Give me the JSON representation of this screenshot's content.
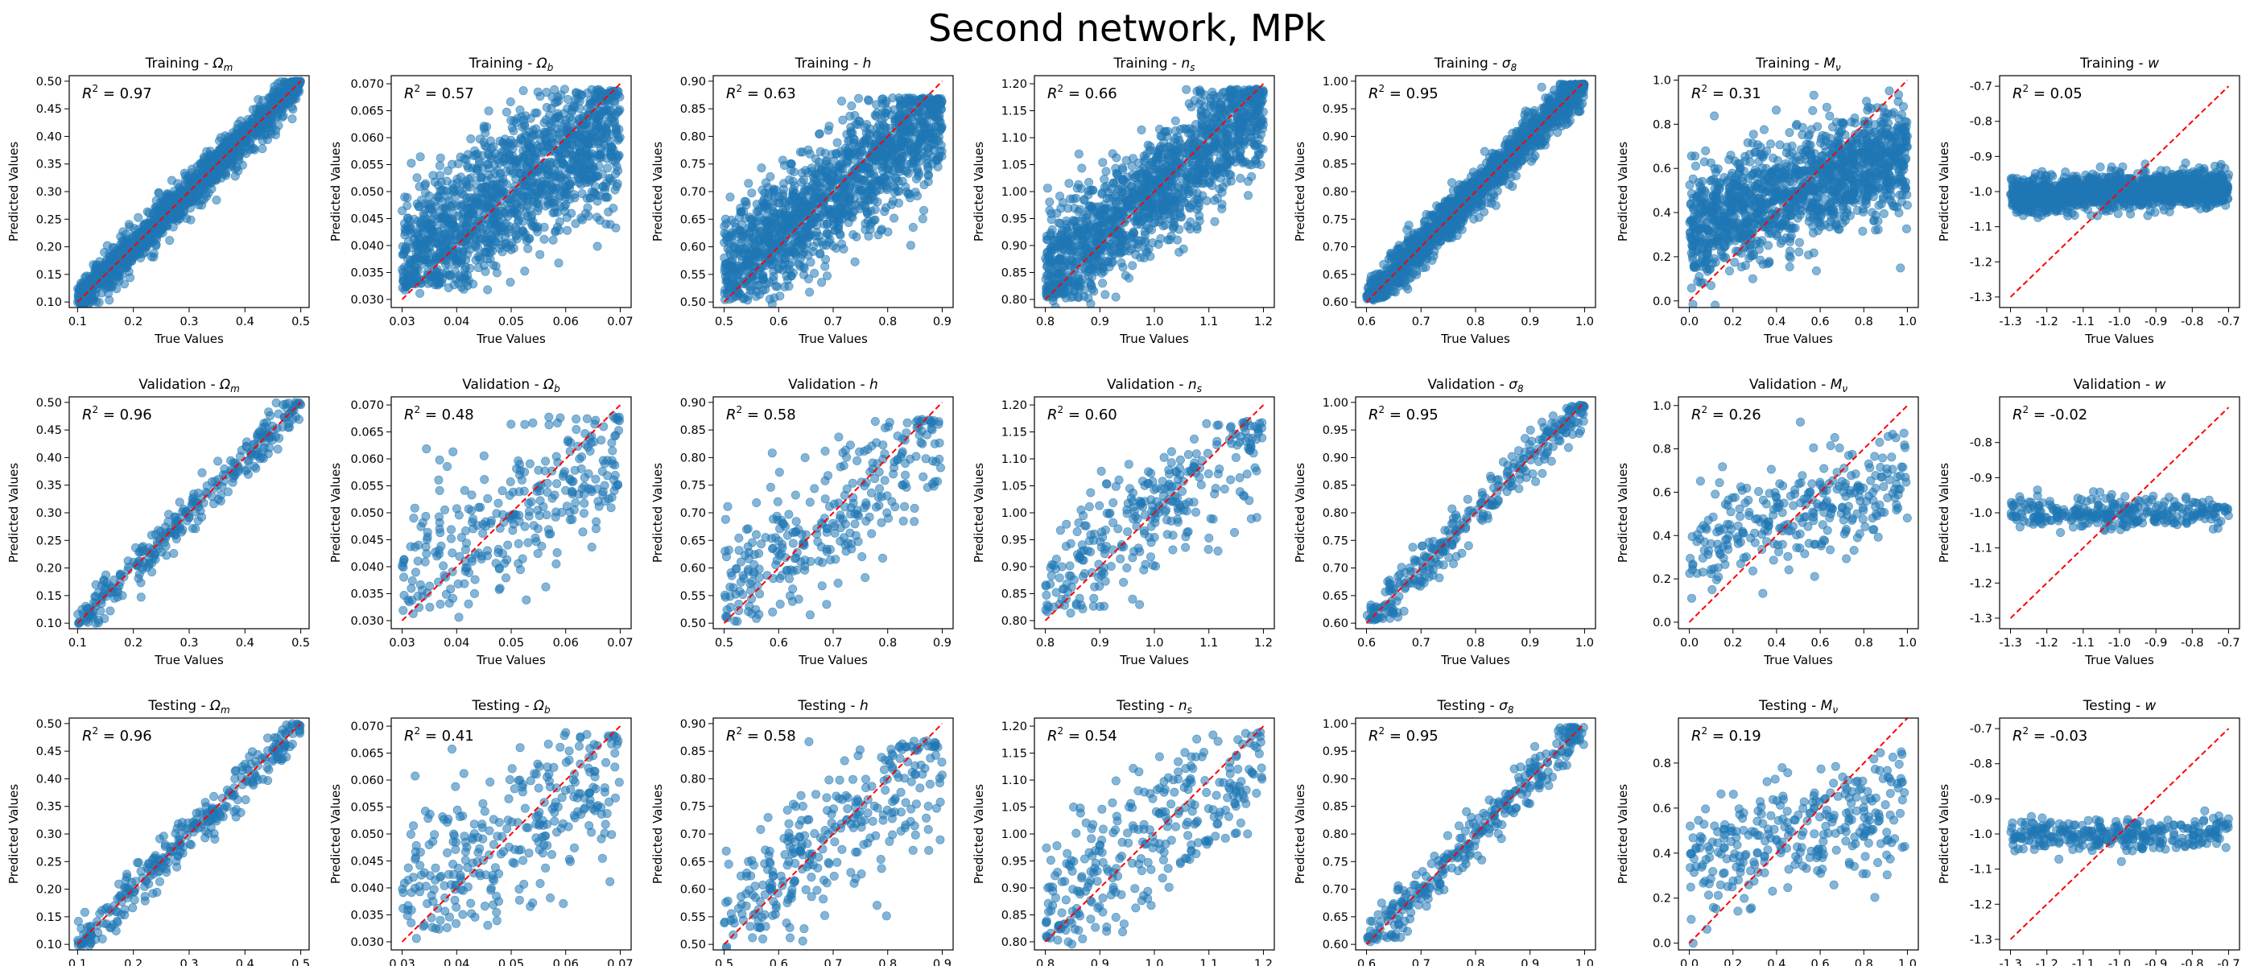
{
  "figure": {
    "title": "Second network, MPk",
    "xlabel": "True Values",
    "ylabel": "Predicted Values",
    "rows": [
      "Training",
      "Validation",
      "Testing"
    ],
    "params": [
      {
        "key": "om",
        "label": "Ω",
        "sub": "m"
      },
      {
        "key": "ob",
        "label": "Ω",
        "sub": "b"
      },
      {
        "key": "h",
        "label": "h",
        "sub": ""
      },
      {
        "key": "ns",
        "label": "n",
        "sub": "s"
      },
      {
        "key": "s8",
        "label": "σ",
        "sub": "8"
      },
      {
        "key": "mv",
        "label": "M",
        "sub": "ν"
      },
      {
        "key": "w",
        "label": "w",
        "sub": ""
      }
    ],
    "colors": {
      "points": "#1f77b4",
      "identity_line": "#ff0000"
    }
  },
  "chart_data": [
    {
      "type": "scatter",
      "row": "Training",
      "param": "Ω_m",
      "title": "Training - Ωm",
      "r2": "0.97",
      "xlim": [
        0.085,
        0.515
      ],
      "ylim": [
        0.09,
        0.51
      ],
      "xticks": [
        "0.1",
        "0.2",
        "0.3",
        "0.4",
        "0.5"
      ],
      "yticks": [
        "0.10",
        "0.15",
        "0.20",
        "0.25",
        "0.30",
        "0.35",
        "0.40",
        "0.45",
        "0.50"
      ],
      "n_points": 1400,
      "true_range": [
        0.1,
        0.5
      ],
      "noise_sd": 0.018,
      "clip": [
        0.1,
        0.5
      ],
      "diagonal": [
        0.1,
        0.5
      ]
    },
    {
      "type": "scatter",
      "row": "Training",
      "param": "Ω_b",
      "title": "Training - Ωb",
      "r2": "0.57",
      "xlim": [
        0.028,
        0.072
      ],
      "ylim": [
        0.0285,
        0.0715
      ],
      "xticks": [
        "0.03",
        "0.04",
        "0.05",
        "0.06",
        "0.07"
      ],
      "yticks": [
        "0.030",
        "0.035",
        "0.040",
        "0.045",
        "0.050",
        "0.055",
        "0.060",
        "0.065",
        "0.070"
      ],
      "n_points": 1400,
      "true_range": [
        0.03,
        0.07
      ],
      "noise_sd": 0.0065,
      "shrink": 0.62,
      "clip": [
        0.033,
        0.069
      ],
      "diagonal": [
        0.03,
        0.07
      ]
    },
    {
      "type": "scatter",
      "row": "Training",
      "param": "h",
      "title": "Training - h",
      "r2": "0.63",
      "xlim": [
        0.48,
        0.92
      ],
      "ylim": [
        0.49,
        0.91
      ],
      "xticks": [
        "0.5",
        "0.6",
        "0.7",
        "0.8",
        "0.9"
      ],
      "yticks": [
        "0.50",
        "0.55",
        "0.60",
        "0.65",
        "0.70",
        "0.75",
        "0.80",
        "0.85",
        "0.90"
      ],
      "n_points": 1400,
      "true_range": [
        0.5,
        0.9
      ],
      "noise_sd": 0.055,
      "shrink": 0.72,
      "clip": [
        0.51,
        0.87
      ],
      "diagonal": [
        0.5,
        0.9
      ]
    },
    {
      "type": "scatter",
      "row": "Training",
      "param": "n_s",
      "title": "Training - ns",
      "r2": "0.66",
      "xlim": [
        0.78,
        1.22
      ],
      "ylim": [
        0.785,
        1.215
      ],
      "xticks": [
        "0.8",
        "0.9",
        "1.0",
        "1.1",
        "1.2"
      ],
      "yticks": [
        "0.80",
        "0.85",
        "0.90",
        "0.95",
        "1.00",
        "1.05",
        "1.10",
        "1.15",
        "1.20"
      ],
      "n_points": 1400,
      "true_range": [
        0.8,
        1.2
      ],
      "noise_sd": 0.055,
      "shrink": 0.78,
      "clip": [
        0.81,
        1.19
      ],
      "diagonal": [
        0.8,
        1.2
      ]
    },
    {
      "type": "scatter",
      "row": "Training",
      "param": "σ_8",
      "title": "Training - σ8",
      "r2": "0.95",
      "xlim": [
        0.58,
        1.02
      ],
      "ylim": [
        0.59,
        1.01
      ],
      "xticks": [
        "0.6",
        "0.7",
        "0.8",
        "0.9",
        "1.0"
      ],
      "yticks": [
        "0.60",
        "0.65",
        "0.70",
        "0.75",
        "0.80",
        "0.85",
        "0.90",
        "0.95",
        "1.00"
      ],
      "n_points": 1400,
      "true_range": [
        0.6,
        1.0
      ],
      "noise_sd": 0.02,
      "clip": [
        0.61,
        0.995
      ],
      "diagonal": [
        0.6,
        1.0
      ]
    },
    {
      "type": "scatter",
      "row": "Training",
      "param": "M_ν",
      "title": "Training - Mν",
      "r2": "0.31",
      "xlim": [
        -0.05,
        1.05
      ],
      "ylim": [
        -0.03,
        1.02
      ],
      "xticks": [
        "0.0",
        "0.2",
        "0.4",
        "0.6",
        "0.8",
        "1.0"
      ],
      "yticks": [
        "0.0",
        "0.2",
        "0.4",
        "0.6",
        "0.8",
        "1.0"
      ],
      "n_points": 1400,
      "true_range": [
        0.0,
        1.0
      ],
      "noise_sd": 0.13,
      "shrink": 0.35,
      "clip": [
        0.01,
        0.99
      ],
      "diagonal": [
        0.0,
        1.0
      ]
    },
    {
      "type": "scatter",
      "row": "Training",
      "param": "w",
      "title": "Training - w",
      "r2": "0.05",
      "xlim": [
        -1.33,
        -0.67
      ],
      "ylim": [
        -1.33,
        -0.67
      ],
      "xticks": [
        "-1.3",
        "-1.2",
        "-1.1",
        "-1.0",
        "-0.9",
        "-0.8",
        "-0.7"
      ],
      "yticks": [
        "-1.3",
        "-1.2",
        "-1.1",
        "-1.0",
        "-0.9",
        "-0.8",
        "-0.7"
      ],
      "n_points": 1400,
      "true_range": [
        -1.3,
        -0.7
      ],
      "noise_sd": 0.025,
      "shrink": 0.05,
      "clip": [
        -1.1,
        -0.9
      ],
      "diagonal": [
        -1.3,
        -0.7
      ]
    },
    {
      "type": "scatter",
      "row": "Validation",
      "param": "Ω_m",
      "title": "Validation - Ωm",
      "r2": "0.96",
      "xlim": [
        0.085,
        0.515
      ],
      "ylim": [
        0.09,
        0.51
      ],
      "xticks": [
        "0.1",
        "0.2",
        "0.3",
        "0.4",
        "0.5"
      ],
      "yticks": [
        "0.10",
        "0.15",
        "0.20",
        "0.25",
        "0.30",
        "0.35",
        "0.40",
        "0.45",
        "0.50"
      ],
      "n_points": 300,
      "true_range": [
        0.1,
        0.5
      ],
      "noise_sd": 0.02,
      "clip": [
        0.1,
        0.5
      ],
      "diagonal": [
        0.1,
        0.5
      ]
    },
    {
      "type": "scatter",
      "row": "Validation",
      "param": "Ω_b",
      "title": "Validation - Ωb",
      "r2": "0.48",
      "xlim": [
        0.028,
        0.072
      ],
      "ylim": [
        0.0285,
        0.0715
      ],
      "xticks": [
        "0.03",
        "0.04",
        "0.05",
        "0.06",
        "0.07"
      ],
      "yticks": [
        "0.030",
        "0.035",
        "0.040",
        "0.045",
        "0.050",
        "0.055",
        "0.060",
        "0.065",
        "0.070"
      ],
      "n_points": 300,
      "true_range": [
        0.03,
        0.07
      ],
      "noise_sd": 0.007,
      "shrink": 0.6,
      "clip": [
        0.033,
        0.068
      ],
      "diagonal": [
        0.03,
        0.07
      ]
    },
    {
      "type": "scatter",
      "row": "Validation",
      "param": "h",
      "title": "Validation - h",
      "r2": "0.58",
      "xlim": [
        0.48,
        0.92
      ],
      "ylim": [
        0.49,
        0.91
      ],
      "xticks": [
        "0.5",
        "0.6",
        "0.7",
        "0.8",
        "0.9"
      ],
      "yticks": [
        "0.50",
        "0.55",
        "0.60",
        "0.65",
        "0.70",
        "0.75",
        "0.80",
        "0.85",
        "0.90"
      ],
      "n_points": 300,
      "true_range": [
        0.5,
        0.9
      ],
      "noise_sd": 0.06,
      "shrink": 0.7,
      "clip": [
        0.51,
        0.87
      ],
      "diagonal": [
        0.5,
        0.9
      ]
    },
    {
      "type": "scatter",
      "row": "Validation",
      "param": "n_s",
      "title": "Validation - ns",
      "r2": "0.60",
      "xlim": [
        0.78,
        1.22
      ],
      "ylim": [
        0.785,
        1.215
      ],
      "xticks": [
        "0.8",
        "0.9",
        "1.0",
        "1.1",
        "1.2"
      ],
      "yticks": [
        "0.80",
        "0.85",
        "0.90",
        "0.95",
        "1.00",
        "1.05",
        "1.10",
        "1.15",
        "1.20"
      ],
      "n_points": 300,
      "true_range": [
        0.8,
        1.2
      ],
      "noise_sd": 0.06,
      "shrink": 0.75,
      "clip": [
        0.82,
        1.17
      ],
      "diagonal": [
        0.8,
        1.2
      ]
    },
    {
      "type": "scatter",
      "row": "Validation",
      "param": "σ_8",
      "title": "Validation - σ8",
      "r2": "0.95",
      "xlim": [
        0.58,
        1.02
      ],
      "ylim": [
        0.59,
        1.01
      ],
      "xticks": [
        "0.6",
        "0.7",
        "0.8",
        "0.9",
        "1.0"
      ],
      "yticks": [
        "0.60",
        "0.65",
        "0.70",
        "0.75",
        "0.80",
        "0.85",
        "0.90",
        "0.95",
        "1.00"
      ],
      "n_points": 300,
      "true_range": [
        0.6,
        1.0
      ],
      "noise_sd": 0.022,
      "clip": [
        0.61,
        0.995
      ],
      "diagonal": [
        0.6,
        1.0
      ]
    },
    {
      "type": "scatter",
      "row": "Validation",
      "param": "M_ν",
      "title": "Validation - Mν",
      "r2": "0.26",
      "xlim": [
        -0.05,
        1.05
      ],
      "ylim": [
        -0.03,
        1.04
      ],
      "xticks": [
        "0.0",
        "0.2",
        "0.4",
        "0.6",
        "0.8",
        "1.0"
      ],
      "yticks": [
        "0.0",
        "0.2",
        "0.4",
        "0.6",
        "0.8",
        "1.0"
      ],
      "n_points": 300,
      "true_range": [
        0.0,
        1.0
      ],
      "noise_sd": 0.13,
      "shrink": 0.32,
      "clip": [
        0.02,
        0.95
      ],
      "diagonal": [
        0.0,
        1.0
      ]
    },
    {
      "type": "scatter",
      "row": "Validation",
      "param": "w",
      "title": "Validation - w",
      "r2": "-0.02",
      "xlim": [
        -1.33,
        -0.67
      ],
      "ylim": [
        -1.33,
        -0.67
      ],
      "xticks": [
        "-1.3",
        "-1.2",
        "-1.1",
        "-1.0",
        "-0.9",
        "-0.8",
        "-0.7"
      ],
      "yticks": [
        "-1.3",
        "-1.2",
        "-1.1",
        "-1.0",
        "-0.9",
        "-0.8"
      ],
      "n_points": 300,
      "true_range": [
        -1.3,
        -0.7
      ],
      "noise_sd": 0.022,
      "shrink": 0.0,
      "clip": [
        -1.08,
        -0.93
      ],
      "diagonal": [
        -1.3,
        -0.7
      ]
    },
    {
      "type": "scatter",
      "row": "Testing",
      "param": "Ω_m",
      "title": "Testing - Ωm",
      "r2": "0.96",
      "xlim": [
        0.085,
        0.515
      ],
      "ylim": [
        0.09,
        0.51
      ],
      "xticks": [
        "0.1",
        "0.2",
        "0.3",
        "0.4",
        "0.5"
      ],
      "yticks": [
        "0.10",
        "0.15",
        "0.20",
        "0.25",
        "0.30",
        "0.35",
        "0.40",
        "0.45",
        "0.50"
      ],
      "n_points": 300,
      "true_range": [
        0.1,
        0.5
      ],
      "noise_sd": 0.02,
      "clip": [
        0.1,
        0.5
      ],
      "diagonal": [
        0.1,
        0.5
      ]
    },
    {
      "type": "scatter",
      "row": "Testing",
      "param": "Ω_b",
      "title": "Testing - Ωb",
      "r2": "0.41",
      "xlim": [
        0.028,
        0.072
      ],
      "ylim": [
        0.0285,
        0.0715
      ],
      "xticks": [
        "0.03",
        "0.04",
        "0.05",
        "0.06",
        "0.07"
      ],
      "yticks": [
        "0.030",
        "0.035",
        "0.040",
        "0.045",
        "0.050",
        "0.055",
        "0.060",
        "0.065",
        "0.070"
      ],
      "n_points": 300,
      "true_range": [
        0.03,
        0.07
      ],
      "noise_sd": 0.0075,
      "shrink": 0.55,
      "clip": [
        0.033,
        0.069
      ],
      "diagonal": [
        0.03,
        0.07
      ]
    },
    {
      "type": "scatter",
      "row": "Testing",
      "param": "h",
      "title": "Testing - h",
      "r2": "0.58",
      "xlim": [
        0.48,
        0.92
      ],
      "ylim": [
        0.49,
        0.91
      ],
      "xticks": [
        "0.5",
        "0.6",
        "0.7",
        "0.8",
        "0.9"
      ],
      "yticks": [
        "0.50",
        "0.55",
        "0.60",
        "0.65",
        "0.70",
        "0.75",
        "0.80",
        "0.85",
        "0.90"
      ],
      "n_points": 300,
      "true_range": [
        0.5,
        0.9
      ],
      "noise_sd": 0.06,
      "shrink": 0.7,
      "clip": [
        0.51,
        0.87
      ],
      "diagonal": [
        0.5,
        0.9
      ]
    },
    {
      "type": "scatter",
      "row": "Testing",
      "param": "n_s",
      "title": "Testing - ns",
      "r2": "0.54",
      "xlim": [
        0.78,
        1.22
      ],
      "ylim": [
        0.785,
        1.215
      ],
      "xticks": [
        "0.8",
        "0.9",
        "1.0",
        "1.1",
        "1.2"
      ],
      "yticks": [
        "0.80",
        "0.85",
        "0.90",
        "0.95",
        "1.00",
        "1.05",
        "1.10",
        "1.15",
        "1.20"
      ],
      "n_points": 300,
      "true_range": [
        0.8,
        1.2
      ],
      "noise_sd": 0.065,
      "shrink": 0.72,
      "clip": [
        0.82,
        1.19
      ],
      "diagonal": [
        0.8,
        1.2
      ]
    },
    {
      "type": "scatter",
      "row": "Testing",
      "param": "σ_8",
      "title": "Testing - σ8",
      "r2": "0.95",
      "xlim": [
        0.58,
        1.02
      ],
      "ylim": [
        0.59,
        1.01
      ],
      "xticks": [
        "0.6",
        "0.7",
        "0.8",
        "0.9",
        "1.0"
      ],
      "yticks": [
        "0.60",
        "0.65",
        "0.70",
        "0.75",
        "0.80",
        "0.85",
        "0.90",
        "0.95",
        "1.00"
      ],
      "n_points": 300,
      "true_range": [
        0.6,
        1.0
      ],
      "noise_sd": 0.022,
      "clip": [
        0.61,
        0.995
      ],
      "diagonal": [
        0.6,
        1.0
      ]
    },
    {
      "type": "scatter",
      "row": "Testing",
      "param": "M_ν",
      "title": "Testing - Mν",
      "r2": "0.19",
      "xlim": [
        -0.05,
        1.05
      ],
      "ylim": [
        -0.03,
        1.0
      ],
      "xticks": [
        "0.0",
        "0.2",
        "0.4",
        "0.6",
        "0.8",
        "1.0"
      ],
      "yticks": [
        "0.0",
        "0.2",
        "0.4",
        "0.6",
        "0.8"
      ],
      "n_points": 300,
      "true_range": [
        0.0,
        1.0
      ],
      "noise_sd": 0.13,
      "shrink": 0.28,
      "clip": [
        0.02,
        0.85
      ],
      "diagonal": [
        0.0,
        1.0
      ]
    },
    {
      "type": "scatter",
      "row": "Testing",
      "param": "w",
      "title": "Testing - w",
      "r2": "-0.03",
      "xlim": [
        -1.33,
        -0.67
      ],
      "ylim": [
        -1.33,
        -0.67
      ],
      "xticks": [
        "-1.3",
        "-1.2",
        "-1.1",
        "-1.0",
        "-0.9",
        "-0.8",
        "-0.7"
      ],
      "yticks": [
        "-1.3",
        "-1.2",
        "-1.1",
        "-1.0",
        "-0.9",
        "-0.8",
        "-0.7"
      ],
      "n_points": 300,
      "true_range": [
        -1.3,
        -0.7
      ],
      "noise_sd": 0.022,
      "shrink": 0.0,
      "clip": [
        -1.08,
        -0.93
      ],
      "diagonal": [
        -1.3,
        -0.7
      ]
    }
  ]
}
